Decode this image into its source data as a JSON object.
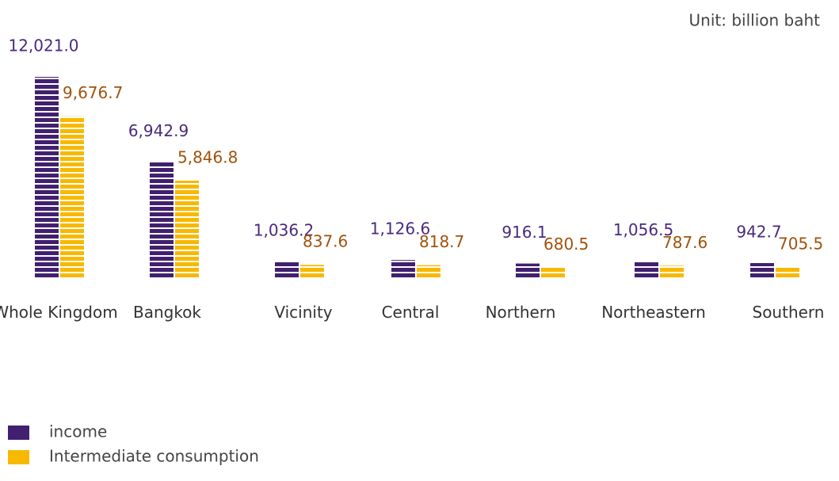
{
  "chart_data": {
    "type": "bar",
    "unit_note": "Unit: billion baht",
    "categories": [
      "Whole Kingdom",
      "Bangkok",
      "Vicinity",
      "Central",
      "Northern",
      "Northeastern",
      "Southern"
    ],
    "series": [
      {
        "name": "income",
        "color": "#41206f",
        "label_color": "#4a2a7c",
        "values": [
          12021.0,
          6942.9,
          1036.2,
          1126.6,
          916.1,
          1056.5,
          942.7
        ],
        "value_labels": [
          "12,021.0",
          "6,942.9",
          "1,036.2",
          "1,126.6",
          "916.1",
          "1,056.5",
          "942.7"
        ]
      },
      {
        "name": "Intermediate consumption",
        "color": "#f7b900",
        "label_color": "#a0520c",
        "values": [
          9676.7,
          5846.8,
          837.6,
          818.7,
          680.5,
          787.6,
          705.5
        ],
        "value_labels": [
          "9,676.7",
          "5,846.8",
          "837.6",
          "818.7",
          "680.5",
          "787.6",
          "705.5"
        ]
      }
    ]
  }
}
